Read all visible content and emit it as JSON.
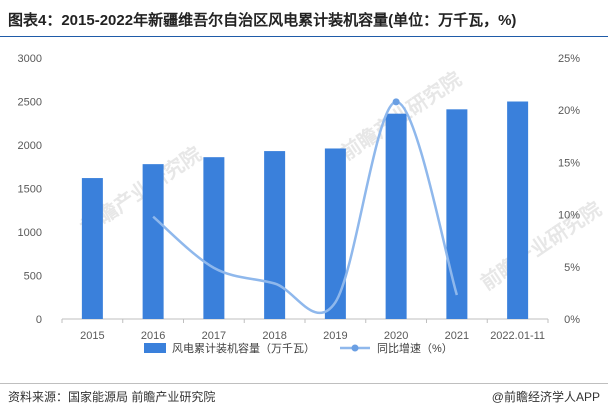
{
  "title": "图表4：2015-2022年新疆维吾尔自治区风电累计装机容量(单位：万千瓦，%)",
  "source": "资料来源：国家能源局 前瞻产业研究院",
  "brand": "@前瞻经济学人APP",
  "watermark": "前瞻产业研究院",
  "chart_data": {
    "type": "bar",
    "categories": [
      "2015",
      "2016",
      "2017",
      "2018",
      "2019",
      "2020",
      "2021",
      "2022.01-11"
    ],
    "series": [
      {
        "name": "风电累计装机容量（万千瓦）",
        "type": "bar",
        "axis": "left",
        "color": "#3a80db",
        "values": [
          1620,
          1780,
          1860,
          1930,
          1960,
          2360,
          2410,
          2500
        ]
      },
      {
        "name": "同比增速（%）",
        "type": "line",
        "axis": "right",
        "color": "#8fb8ec",
        "values": [
          null,
          9.8,
          4.9,
          3.4,
          1.6,
          20.8,
          2.3,
          null
        ]
      }
    ],
    "ylim_left": [
      0,
      3000
    ],
    "ylim_right": [
      0,
      25
    ],
    "yticks_left": [
      "0",
      "500",
      "1000",
      "1500",
      "2000",
      "2500",
      "3000"
    ],
    "yticks_right": [
      "0%",
      "5%",
      "10%",
      "15%",
      "20%",
      "25%"
    ],
    "grid": false,
    "legend_position": "bottom"
  }
}
